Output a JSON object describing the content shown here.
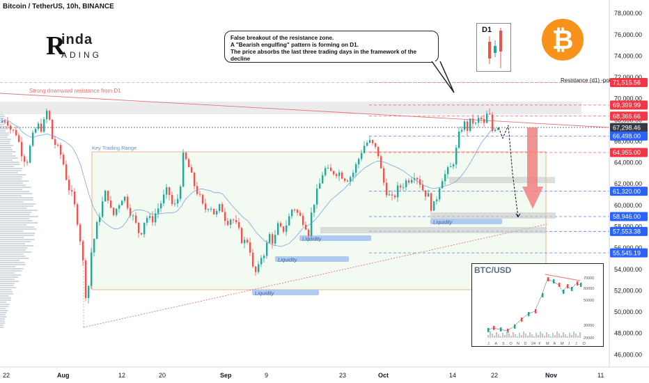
{
  "header": {
    "title": "Bitcoin / TetherUS, 10h, BINANCE"
  },
  "logo": {
    "line1": "inda",
    "line2": "ADING",
    "mark": "R"
  },
  "callout": {
    "line1": "False breakout of the resistance zone.",
    "line2": "A \"Bearish engulfing\" pattern is forming on D1.",
    "line3": "The price absorbs the last three trading days in the framework of the decline"
  },
  "d1_inset": {
    "label": "D1"
  },
  "btc_icon": {
    "name": "bitcoin-logo-icon",
    "glyph": "₿",
    "color": "#f7931a"
  },
  "annotations": {
    "resistance_label": "Strong downward resistance from D1",
    "range_label": "Key Trading Range",
    "resistance_d1": "Resistance (d1) -poi",
    "liquidity": [
      "Liquidity",
      "Liquidity",
      "Liquidity",
      "Liquidity"
    ]
  },
  "inset_chart": {
    "title": "BTC/USD",
    "yticks": [
      "70000",
      "60000",
      "50000",
      "30000",
      "20000"
    ],
    "xticks": [
      "J",
      "A",
      "S",
      "O",
      "N",
      "D",
      "24",
      "F",
      "M",
      "A",
      "M",
      "J",
      "J",
      "O"
    ]
  },
  "colors": {
    "up": "#26a69a",
    "down": "#ef5350",
    "red_tag": "#f23645",
    "blue_tag": "#2962ff",
    "dark_tag": "#363a45"
  },
  "chart_data": {
    "type": "candlestick",
    "title": "Bitcoin / TetherUS, 10h, BINANCE",
    "ylim": [
      45300,
      78600
    ],
    "yticks": [
      46000,
      48000,
      50000,
      52000,
      54000,
      56000,
      58000,
      60000,
      62000,
      64000,
      66000,
      68000,
      70000,
      72000,
      74000,
      76000,
      78000
    ],
    "ytick_labels": [
      "46,000.00",
      "48,000.00",
      "50,000.00",
      "52,000.00",
      "54,000.00",
      "56,000.00",
      "58,000.00",
      "60,000.00",
      "62,000.00",
      "64,000.00",
      "66,000.00",
      "68,000.00",
      "70,000.00",
      "72,000.00",
      "74,000.00",
      "76,000.00",
      "78,000.00"
    ],
    "xtick_labels": [
      "22",
      "Aug",
      "12",
      "20",
      "Sep",
      "9",
      "23",
      "Oct",
      "14",
      "22",
      "Nov",
      "11"
    ],
    "price_tags": [
      {
        "value": 71515.56,
        "label": "71,515.56",
        "color": "red"
      },
      {
        "value": 69399.99,
        "label": "69,399.99",
        "color": "red"
      },
      {
        "value": 68366.66,
        "label": "68,366.66",
        "color": "red"
      },
      {
        "value": 67298.46,
        "label": "67,298.46",
        "color": "dark"
      },
      {
        "value": 66498.0,
        "label": "66,498.00",
        "color": "blue"
      },
      {
        "value": 64955.0,
        "label": "64,955.00",
        "color": "red"
      },
      {
        "value": 61320.0,
        "label": "61,320.00",
        "color": "blue"
      },
      {
        "value": 58946.0,
        "label": "58,946.00",
        "color": "blue"
      },
      {
        "value": 57553.38,
        "label": "57,553.38",
        "color": "blue"
      },
      {
        "value": 55545.19,
        "label": "55,545.19",
        "color": "blue"
      }
    ],
    "price_path": [
      [
        0,
        67800
      ],
      [
        8,
        68200
      ],
      [
        15,
        67000
      ],
      [
        22,
        66800
      ],
      [
        30,
        65000
      ],
      [
        37,
        64000
      ],
      [
        44,
        66000
      ],
      [
        52,
        67500
      ],
      [
        60,
        67200
      ],
      [
        68,
        69300
      ],
      [
        72,
        66500
      ],
      [
        80,
        65500
      ],
      [
        88,
        64500
      ],
      [
        96,
        62000
      ],
      [
        104,
        60500
      ],
      [
        112,
        58000
      ],
      [
        120,
        53500
      ],
      [
        124,
        50000
      ],
      [
        128,
        55000
      ],
      [
        136,
        57500
      ],
      [
        144,
        59800
      ],
      [
        152,
        61500
      ],
      [
        160,
        58800
      ],
      [
        168,
        60000
      ],
      [
        176,
        61000
      ],
      [
        184,
        59800
      ],
      [
        192,
        58500
      ],
      [
        200,
        57200
      ],
      [
        208,
        59000
      ],
      [
        216,
        58500
      ],
      [
        224,
        59500
      ],
      [
        232,
        60500
      ],
      [
        240,
        61500
      ],
      [
        248,
        59600
      ],
      [
        256,
        61000
      ],
      [
        262,
        64500
      ],
      [
        268,
        64000
      ],
      [
        276,
        62200
      ],
      [
        284,
        61000
      ],
      [
        292,
        59500
      ],
      [
        300,
        60200
      ],
      [
        308,
        59000
      ],
      [
        316,
        60000
      ],
      [
        324,
        58500
      ],
      [
        332,
        58900
      ],
      [
        340,
        57800
      ],
      [
        348,
        56500
      ],
      [
        356,
        56800
      ],
      [
        362,
        54000
      ],
      [
        368,
        53500
      ],
      [
        374,
        55200
      ],
      [
        380,
        55800
      ],
      [
        386,
        57200
      ],
      [
        392,
        56500
      ],
      [
        398,
        58000
      ],
      [
        404,
        57500
      ],
      [
        412,
        58500
      ],
      [
        420,
        60000
      ],
      [
        428,
        59000
      ],
      [
        436,
        58500
      ],
      [
        442,
        57500
      ],
      [
        448,
        60000
      ],
      [
        456,
        61500
      ],
      [
        464,
        63500
      ],
      [
        472,
        63000
      ],
      [
        480,
        63200
      ],
      [
        488,
        63000
      ],
      [
        496,
        62500
      ],
      [
        504,
        62800
      ],
      [
        512,
        64000
      ],
      [
        520,
        65500
      ],
      [
        528,
        66000
      ],
      [
        536,
        65500
      ],
      [
        542,
        64800
      ],
      [
        548,
        62500
      ],
      [
        556,
        61000
      ],
      [
        562,
        60500
      ],
      [
        570,
        61500
      ],
      [
        578,
        62000
      ],
      [
        586,
        62500
      ],
      [
        594,
        63000
      ],
      [
        600,
        62500
      ],
      [
        606,
        61500
      ],
      [
        614,
        60800
      ],
      [
        620,
        59500
      ],
      [
        626,
        60800
      ],
      [
        632,
        62500
      ],
      [
        640,
        63000
      ],
      [
        646,
        63500
      ],
      [
        652,
        64500
      ],
      [
        658,
        66500
      ],
      [
        664,
        67800
      ],
      [
        670,
        67200
      ],
      [
        676,
        68000
      ],
      [
        682,
        67500
      ],
      [
        688,
        68300
      ],
      [
        694,
        67500
      ],
      [
        700,
        68900
      ],
      [
        706,
        67000
      ],
      [
        712,
        67600
      ],
      [
        716,
        67300
      ]
    ],
    "forecast_path": [
      [
        716,
        67300
      ],
      [
        722,
        66300
      ],
      [
        730,
        67500
      ],
      [
        736,
        63000
      ],
      [
        744,
        58900
      ]
    ]
  }
}
